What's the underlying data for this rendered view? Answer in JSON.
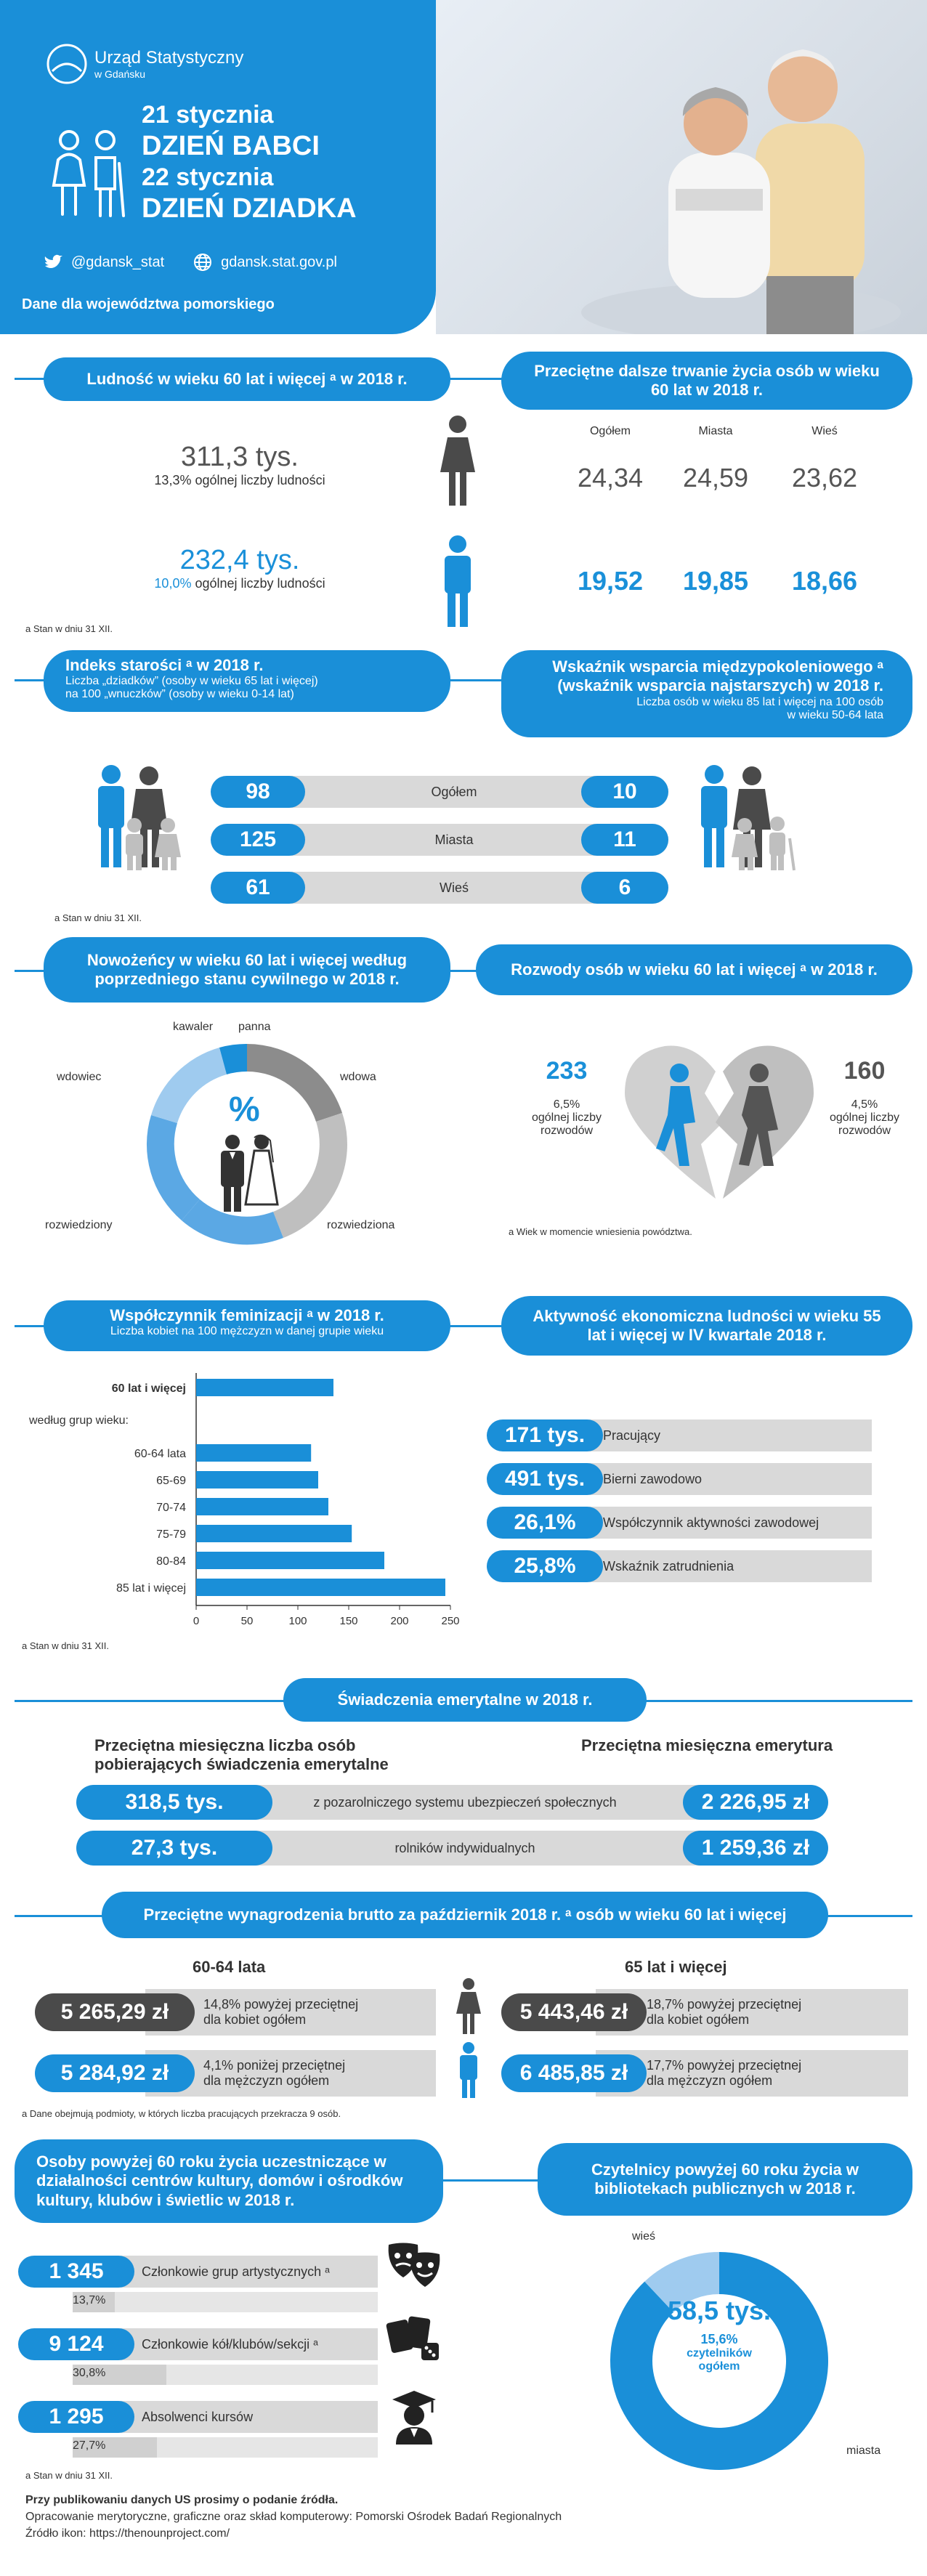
{
  "header": {
    "office_line1": "Urząd Statystyczny",
    "office_line2": "w Gdańsku",
    "date1": "21 stycznia",
    "title1": "DZIEŃ BABCI",
    "date2": "22 stycznia",
    "title2": "DZIEŃ DZIADKA",
    "twitter": "@gdansk_stat",
    "website": "gdansk.stat.gov.pl",
    "region": "Dane dla województwa pomorskiego"
  },
  "population": {
    "title": "Ludność w wieku 60 lat i więcej ᵃ w 2018 r.",
    "women_value": "311,3 tys.",
    "women_share": "13,3% ogólnej liczby ludności",
    "men_value": "232,4 tys.",
    "men_share_pct": "10,0%",
    "men_share_rest": " ogólnej liczby ludności",
    "note": "a Stan w dniu 31 XII."
  },
  "life_expectancy": {
    "title": "Przeciętne dalsze trwanie życia osób w wieku 60 lat w 2018 r.",
    "headers": [
      "Ogółem",
      "Miasta",
      "Wieś"
    ],
    "women": [
      "24,34",
      "24,59",
      "23,62"
    ],
    "men": [
      "19,52",
      "19,85",
      "18,66"
    ]
  },
  "aging_index": {
    "title": "Indeks starości ᵃ w 2018 r.",
    "desc1": "Liczba „dziadków” (osoby w wieku 65 lat i więcej)",
    "desc2": "na 100 „wnuczków” (osoby w wieku 0-14 lat)",
    "rows": [
      {
        "label": "Ogółem",
        "left": "98",
        "right": "10"
      },
      {
        "label": "Miasta",
        "left": "125",
        "right": "11"
      },
      {
        "label": "Wieś",
        "left": "61",
        "right": "6"
      }
    ],
    "note": "a Stan w dniu 31 XII."
  },
  "support_ratio": {
    "title": "Wskaźnik wsparcia międzypokoleniowego ᵃ (wskaźnik wsparcia najstarszych) w 2018 r.",
    "desc1": "Liczba osób w wieku 85 lat i więcej na 100 osób",
    "desc2": "w wieku 50-64 lata"
  },
  "newlyweds": {
    "title": "Nowożeńcy w wieku 60 lat i więcej według poprzedniego stanu cywilnego w 2018 r.",
    "pct_symbol": "%",
    "labels": {
      "kawaler": "kawaler",
      "panna": "panna",
      "wdowiec": "wdowiec",
      "wdowa": "wdowa",
      "rozwiedziony": "rozwiedziony",
      "rozwiedziona": "rozwiedziona"
    },
    "colors": {
      "dark_grey": "#8c8c8c",
      "light_grey": "#bfbfbf",
      "light_blue": "#9fcbef",
      "mid_blue": "#5ba8e4",
      "blue": "#1a8fd8"
    }
  },
  "divorces": {
    "title": "Rozwody osób w wieku 60 lat i więcej ᵃ w 2018 r.",
    "men_value": "233",
    "men_share": "6,5%",
    "men_desc1": "ogólnej liczby",
    "men_desc2": "rozwodów",
    "women_value": "160",
    "women_share": "4,5%",
    "women_desc1": "ogólnej liczby",
    "women_desc2": "rozwodów",
    "note": "a Wiek w momencie wniesienia powództwa."
  },
  "feminization": {
    "title": "Współczynnik feminizacji ᵃ w 2018 r.",
    "subtitle": "Liczba kobiet na 100 mężczyzn w danej grupie wieku",
    "group_label": "według grup wieku:",
    "note": "a Stan w dniu 31 XII."
  },
  "chart_data": {
    "type": "bar",
    "orientation": "horizontal",
    "categories": [
      "60 lat i więcej",
      "60-64 lata",
      "65-69",
      "70-74",
      "75-79",
      "80-84",
      "85 lat i więcej"
    ],
    "values": [
      135,
      113,
      120,
      130,
      153,
      185,
      245
    ],
    "xlim": [
      0,
      250
    ],
    "xticks": [
      "0",
      "50",
      "100",
      "150",
      "200",
      "250"
    ],
    "color": "#1a8fd8"
  },
  "economic_activity": {
    "title": "Aktywność ekonomiczna ludności w wieku 55 lat i więcej w IV kwartale 2018 r.",
    "rows": [
      {
        "value": "171 tys.",
        "label": "Pracujący"
      },
      {
        "value": "491 tys.",
        "label": "Bierni zawodowo"
      },
      {
        "value": "26,1%",
        "label": "Współczynnik aktywności zawodowej"
      },
      {
        "value": "25,8%",
        "label": "Wskaźnik zatrudnienia"
      }
    ]
  },
  "pensions": {
    "title": "Świadczenia emerytalne w 2018 r.",
    "left_header1": "Przeciętna miesięczna liczba osób",
    "left_header2": "pobierających świadczenia emerytalne",
    "right_header": "Przeciętna miesięczna emerytura",
    "rows": [
      {
        "count": "318,5 tys.",
        "label": "z pozarolniczego systemu ubezpieczeń społecznych",
        "amount": "2 226,95 zł"
      },
      {
        "count": "27,3 tys.",
        "label": "rolników indywidualnych",
        "amount": "1 259,36 zł"
      }
    ]
  },
  "wages": {
    "title": "Przeciętne wynagrodzenia brutto za październik 2018 r. ᵃ osób w wieku 60 lat i więcej",
    "left_header": "60-64 lata",
    "right_header": "65 lat i więcej",
    "women_left_value": "5 265,29 zł",
    "women_left_desc1": "14,8% powyżej przeciętnej",
    "women_left_desc2": "dla kobiet ogółem",
    "women_right_value": "5 443,46 zł",
    "women_right_desc1": "18,7% powyżej przeciętnej",
    "women_right_desc2": "dla kobiet ogółem",
    "men_left_value": "5 284,92 zł",
    "men_left_desc1": "4,1% poniżej przeciętnej",
    "men_left_desc2": "dla mężczyzn ogółem",
    "men_right_value": "6 485,85 zł",
    "men_right_desc1": "17,7% powyżej przeciętnej",
    "men_right_desc2": "dla mężczyzn ogółem",
    "note": "a Dane obejmują podmioty, w których liczba pracujących przekracza 9 osób."
  },
  "culture": {
    "title": "Osoby powyżej 60 roku życia uczestniczące w działalności centrów kultury, domów i ośrodków kultury, klubów i świetlic w 2018 r.",
    "rows": [
      {
        "value": "1 345",
        "label": "Członkowie grup artystycznych ᵃ",
        "share": "13,7%",
        "share_frac": 0.137
      },
      {
        "value": "9 124",
        "label": "Członkowie kół/klubów/sekcji ᵃ",
        "share": "30,8%",
        "share_frac": 0.308
      },
      {
        "value": "1 295",
        "label": "Absolwenci kursów",
        "share": "27,7%",
        "share_frac": 0.277
      }
    ],
    "note": "a Stan w dniu 31 XII."
  },
  "library": {
    "title": "Czytelnicy powyżej 60 roku życia w bibliotekach publicznych w 2018 r.",
    "value": "58,5 tys.",
    "share1": "15,6%",
    "share2": "czytelników",
    "share3": "ogółem",
    "label_wies": "wieś",
    "label_miasta": "miasta"
  },
  "footer": {
    "line1": "Przy publikowaniu danych US prosimy o podanie źródła.",
    "line2": "Opracowanie merytoryczne, graficzne oraz skład komputerowy: Pomorski Ośrodek Badań Regionalnych",
    "line3": "Źródło ikon: https://thenounproject.com/"
  }
}
